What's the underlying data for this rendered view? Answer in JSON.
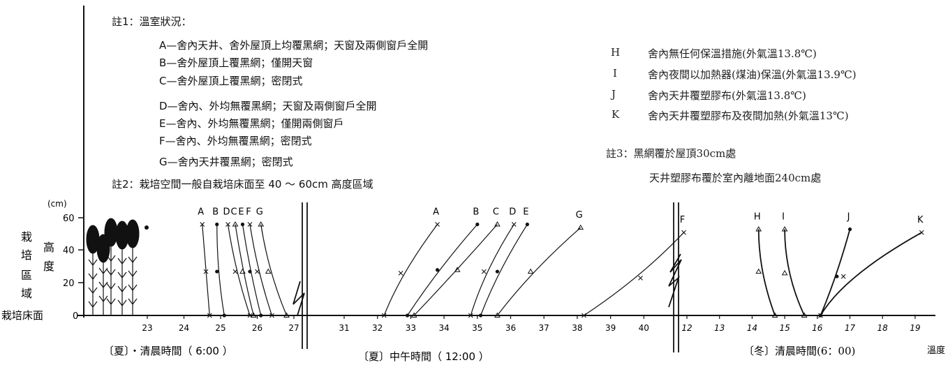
{
  "notes": {
    "note1_title": "註1：溫室狀況：",
    "note1_items": [
      "A—舍內天井、舍外屋頂上均覆黑網；天窗及兩側窗戶全開",
      "B—舍外屋頂上覆黑網；僅開天窗",
      "C—舍外屋頂上覆黑網；密閉式",
      "D—舍內、外均無覆黑網；天窗及兩側窗戶全開",
      "E—舍內、外均無覆黑網；僅開兩側窗戶",
      "F—舍內、外均無覆黑網；密閉式",
      "G—舍內天井覆黑網；密閉式"
    ],
    "note2": "註2：栽培空間一般自栽培床面至 40 ～ 60cm 高度區域",
    "right_items": [
      {
        "key": "H",
        "text": "舍內無任何保溫措施(外氣溫13.8℃)"
      },
      {
        "key": "I",
        "text": "舍內夜間以加熱器(煤油)保溫(外氣溫13.9℃)"
      },
      {
        "key": "J",
        "text": "舍內天井覆塑膠布(外氣溫13.8℃)"
      },
      {
        "key": "K",
        "text": "舍內天井覆塑膠布及夜間加熱(外氣溫13℃)"
      }
    ],
    "note3_line1": "註3：黑網覆於屋頂30cm處",
    "note3_line2": "天井塑膠布覆於室內離地面240cm處"
  },
  "axis": {
    "y_unit": "(cm)",
    "y_ticks": [
      "0",
      "20",
      "40",
      "60"
    ],
    "y_label_zone": [
      "栽",
      "培",
      "區",
      "域"
    ],
    "y_label_height": [
      "高",
      "度"
    ],
    "y_zero_label": "栽培床面",
    "x_unit": "溫度"
  },
  "panels": [
    {
      "caption": "〔夏〕・清晨時間（ 6:00 ）",
      "x_ticks": [
        "23",
        "24",
        "25",
        "26",
        "27"
      ],
      "series": [
        {
          "name": "A",
          "points": [
            [
              24.7,
              0
            ],
            [
              24.6,
              27
            ],
            [
              24.5,
              56
            ]
          ]
        },
        {
          "name": "B",
          "points": [
            [
              25.1,
              0
            ],
            [
              24.9,
              27
            ],
            [
              24.9,
              56
            ]
          ]
        },
        {
          "name": "D",
          "points": [
            [
              25.8,
              0
            ],
            [
              25.4,
              27
            ],
            [
              25.2,
              56
            ]
          ]
        },
        {
          "name": "C",
          "points": [
            [
              25.9,
              0
            ],
            [
              25.6,
              27
            ],
            [
              25.4,
              56
            ]
          ]
        },
        {
          "name": "E",
          "points": [
            [
              26.1,
              0
            ],
            [
              25.8,
              27
            ],
            [
              25.6,
              56
            ]
          ]
        },
        {
          "name": "F",
          "points": [
            [
              26.4,
              0
            ],
            [
              26.0,
              27
            ],
            [
              25.8,
              56
            ]
          ]
        },
        {
          "name": "G",
          "points": [
            [
              26.8,
              0
            ],
            [
              26.3,
              27
            ],
            [
              26.1,
              56
            ]
          ]
        }
      ]
    },
    {
      "caption": "〔夏〕中午時間（ 12:00 ）",
      "x_ticks": [
        "31",
        "32",
        "33",
        "34",
        "35",
        "36",
        "37",
        "38",
        "39",
        "40"
      ],
      "series": [
        {
          "name": "A",
          "points": [
            [
              32.2,
              0
            ],
            [
              32.7,
              26
            ],
            [
              33.8,
              56
            ]
          ]
        },
        {
          "name": "B",
          "points": [
            [
              32.9,
              0
            ],
            [
              33.8,
              28
            ],
            [
              35.0,
              56
            ]
          ]
        },
        {
          "name": "C",
          "points": [
            [
              33.1,
              0
            ],
            [
              34.4,
              28
            ],
            [
              35.6,
              56
            ]
          ]
        },
        {
          "name": "D",
          "points": [
            [
              34.8,
              0
            ],
            [
              35.2,
              27
            ],
            [
              36.1,
              56
            ]
          ]
        },
        {
          "name": "E",
          "points": [
            [
              35.1,
              0
            ],
            [
              35.6,
              27
            ],
            [
              36.5,
              56
            ]
          ]
        },
        {
          "name": "G",
          "points": [
            [
              35.6,
              0
            ],
            [
              36.6,
              27
            ],
            [
              38.1,
              54
            ]
          ]
        },
        {
          "name": "F",
          "points": [
            [
              38.2,
              0
            ],
            [
              39.9,
              23
            ],
            [
              41.2,
              51
            ]
          ]
        }
      ]
    },
    {
      "caption": "〔冬〕清晨時間(6：00)",
      "x_ticks": [
        "12",
        "13",
        "14",
        "15",
        "16",
        "17",
        "18",
        "19"
      ],
      "series": [
        {
          "name": "H",
          "points": [
            [
              14.7,
              0
            ],
            [
              14.2,
              27
            ],
            [
              14.2,
              53
            ]
          ]
        },
        {
          "name": "I",
          "points": [
            [
              15.6,
              0
            ],
            [
              15.0,
              26
            ],
            [
              15.0,
              53
            ]
          ]
        },
        {
          "name": "J",
          "points": [
            [
              16.1,
              0
            ],
            [
              16.6,
              24
            ],
            [
              17.0,
              53
            ]
          ]
        },
        {
          "name": "K",
          "points": [
            [
              16.1,
              0
            ],
            [
              16.8,
              24
            ],
            [
              19.2,
              51
            ]
          ]
        }
      ]
    }
  ]
}
